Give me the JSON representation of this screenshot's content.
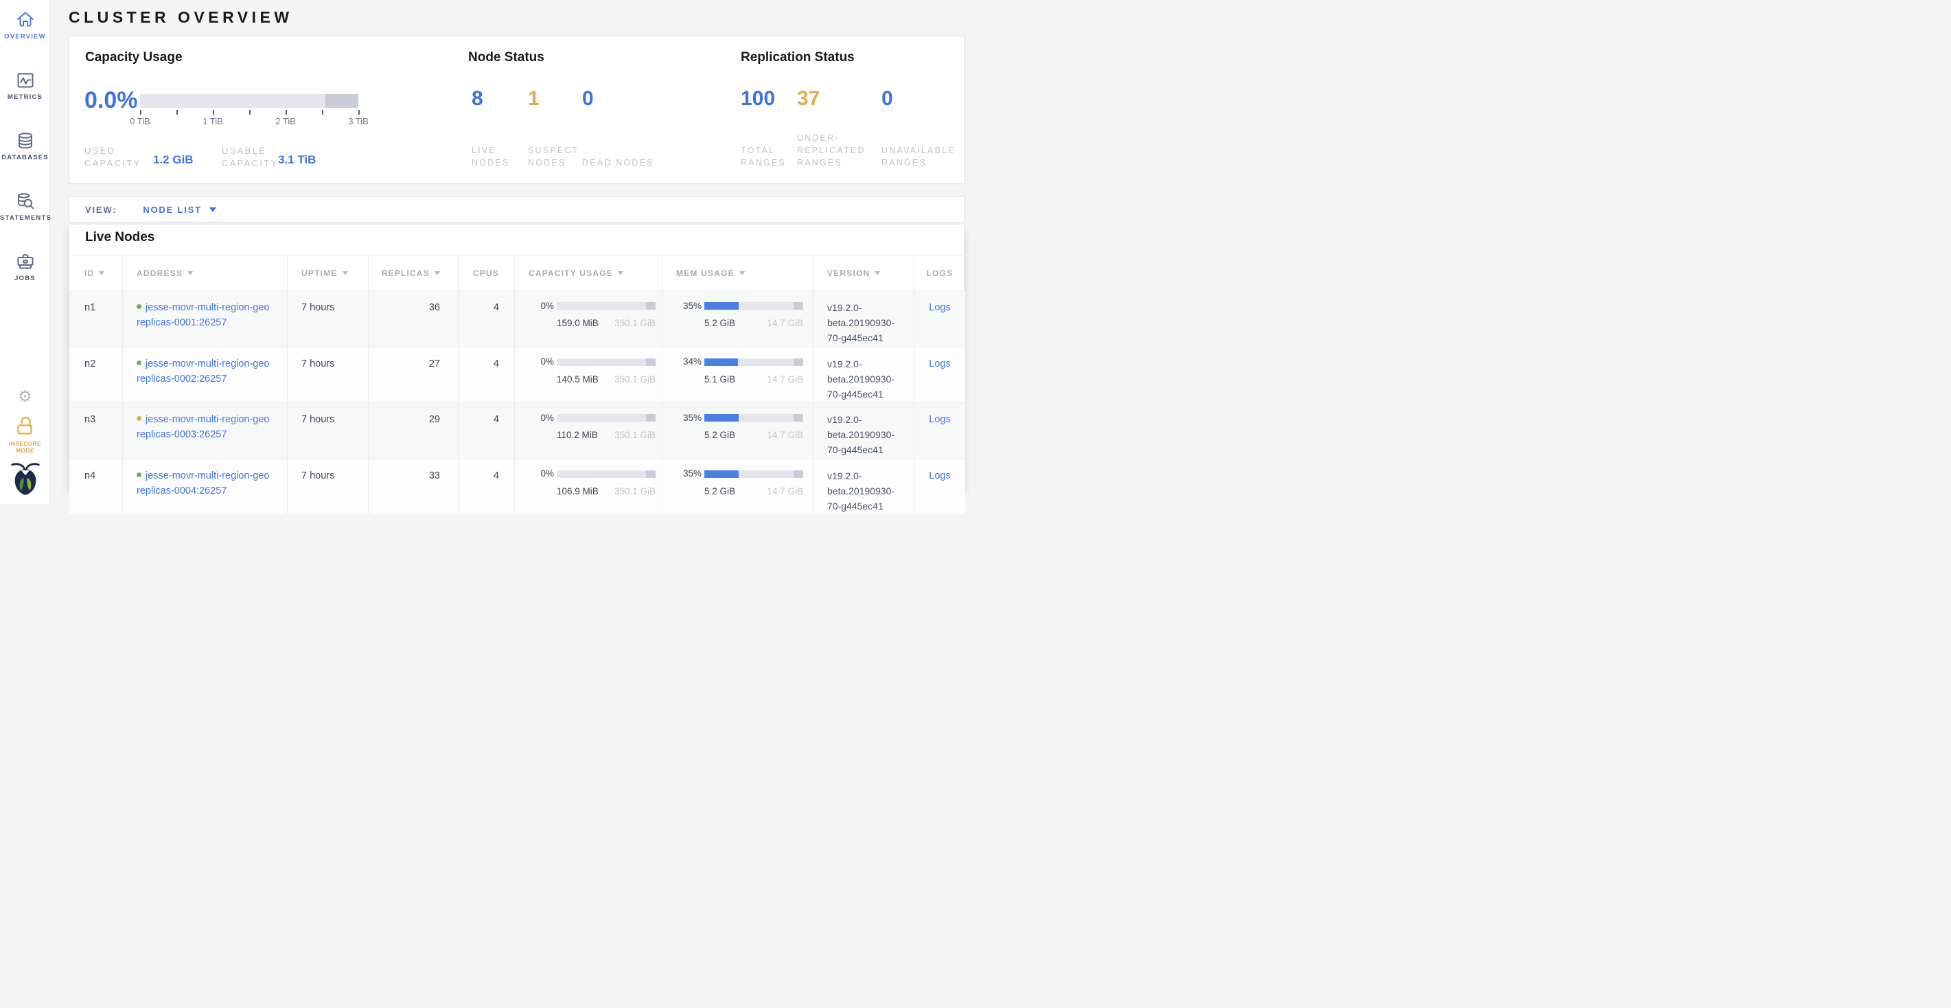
{
  "title": "CLUSTER OVERVIEW",
  "sidebar": {
    "items": [
      {
        "label": "OVERVIEW",
        "icon": "home-icon",
        "active": true
      },
      {
        "label": "METRICS",
        "icon": "metrics-icon",
        "active": false
      },
      {
        "label": "DATABASES",
        "icon": "databases-icon",
        "active": false
      },
      {
        "label": "STATEMENTS",
        "icon": "statements-icon",
        "active": false
      },
      {
        "label": "JOBS",
        "icon": "jobs-icon",
        "active": false
      }
    ],
    "settings_icon": "gear-icon",
    "insecure_mode_label": "INSECURE MODE",
    "logo_icon": "cockroach-logo"
  },
  "summary": {
    "capacity": {
      "title": "Capacity Usage",
      "percent": "0.0%",
      "tick_labels": [
        "0 TiB",
        "1 TiB",
        "2 TiB",
        "3 TiB"
      ],
      "bar": {
        "used_pct": 0,
        "reserved_pct": 15
      },
      "used_label": "USED CAPACITY",
      "used_value": "1.2 GiB",
      "usable_label": "USABLE CAPACITY",
      "usable_value": "3.1 TiB"
    },
    "node_status": {
      "title": "Node Status",
      "stats": [
        {
          "value": "8",
          "label": "LIVE NODES",
          "tone": "blue"
        },
        {
          "value": "1",
          "label": "SUSPECT NODES",
          "tone": "yellow"
        },
        {
          "value": "0",
          "label": "DEAD NODES",
          "tone": "blue"
        }
      ]
    },
    "replication_status": {
      "title": "Replication Status",
      "stats": [
        {
          "value": "100",
          "label": "TOTAL RANGES",
          "tone": "blue"
        },
        {
          "value": "37",
          "label": "UNDER-REPLICATED RANGES",
          "tone": "yellow"
        },
        {
          "value": "0",
          "label": "UNAVAILABLE RANGES",
          "tone": "blue"
        }
      ]
    }
  },
  "view_bar": {
    "label": "VIEW:",
    "selected": "NODE LIST"
  },
  "live_nodes": {
    "title": "Live Nodes",
    "columns": [
      {
        "label": "ID",
        "sortable": true,
        "align": "left"
      },
      {
        "label": "ADDRESS",
        "sortable": true,
        "align": "left"
      },
      {
        "label": "UPTIME",
        "sortable": true,
        "align": "left"
      },
      {
        "label": "REPLICAS",
        "sortable": true,
        "align": "right"
      },
      {
        "label": "CPUS",
        "sortable": false,
        "align": "rightc"
      },
      {
        "label": "CAPACITY USAGE",
        "sortable": true,
        "align": "left"
      },
      {
        "label": "MEM USAGE",
        "sortable": true,
        "align": "left"
      },
      {
        "label": "VERSION",
        "sortable": true,
        "align": "left"
      },
      {
        "label": "LOGS",
        "sortable": false,
        "align": "center"
      }
    ],
    "rows": [
      {
        "id": "n1",
        "status": "healthy",
        "address_lines": [
          "jesse-movr-multi-region-geo",
          "replicas-0001:26257"
        ],
        "uptime": "7 hours",
        "replicas": "36",
        "cpus": "4",
        "capacity": {
          "percent": "0%",
          "used_pct": 0,
          "used": "159.0 MiB",
          "total": "350.1 GiB"
        },
        "memory": {
          "percent": "35%",
          "used_pct": 35,
          "used": "5.2 GiB",
          "total": "14.7 GiB"
        },
        "version": "v19.2.0-beta.20190930-70-g445ec41",
        "logs_label": "Logs"
      },
      {
        "id": "n2",
        "status": "healthy",
        "address_lines": [
          "jesse-movr-multi-region-geo",
          "replicas-0002:26257"
        ],
        "uptime": "7 hours",
        "replicas": "27",
        "cpus": "4",
        "capacity": {
          "percent": "0%",
          "used_pct": 0,
          "used": "140.5 MiB",
          "total": "350.1 GiB"
        },
        "memory": {
          "percent": "34%",
          "used_pct": 34,
          "used": "5.1 GiB",
          "total": "14.7 GiB"
        },
        "version": "v19.2.0-beta.20190930-70-g445ec41",
        "logs_label": "Logs"
      },
      {
        "id": "n3",
        "status": "suspect",
        "address_lines": [
          "jesse-movr-multi-region-geo",
          "replicas-0003:26257"
        ],
        "uptime": "7 hours",
        "replicas": "29",
        "cpus": "4",
        "capacity": {
          "percent": "0%",
          "used_pct": 0,
          "used": "110.2 MiB",
          "total": "350.1 GiB"
        },
        "memory": {
          "percent": "35%",
          "used_pct": 35,
          "used": "5.2 GiB",
          "total": "14.7 GiB"
        },
        "version": "v19.2.0-beta.20190930-70-g445ec41",
        "logs_label": "Logs"
      },
      {
        "id": "n4",
        "status": "healthy",
        "address_lines": [
          "jesse-movr-multi-region-geo",
          "replicas-0004:26257"
        ],
        "uptime": "7 hours",
        "replicas": "33",
        "cpus": "4",
        "capacity": {
          "percent": "0%",
          "used_pct": 0,
          "used": "106.9 MiB",
          "total": "350.1 GiB"
        },
        "memory": {
          "percent": "35%",
          "used_pct": 35,
          "used": "5.2 GiB",
          "total": "14.7 GiB"
        },
        "version": "v19.2.0-beta.20190930-70-g445ec41",
        "logs_label": "Logs"
      }
    ]
  },
  "colors": {
    "accent_blue": "#3f73dc",
    "bar_blue": "#4a80e2",
    "warning_yellow": "#ddad4a",
    "healthy_green": "#6fb253"
  }
}
